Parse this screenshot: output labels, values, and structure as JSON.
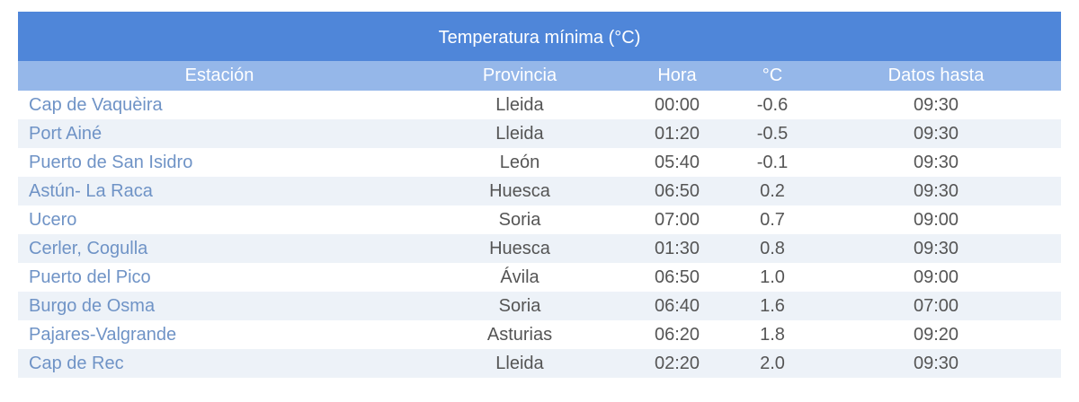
{
  "table": {
    "title": "Temperatura mínima (°C)",
    "columns": [
      "Estación",
      "Provincia",
      "Hora",
      "°C",
      "Datos hasta"
    ],
    "rows": [
      [
        "Cap de Vaquèira",
        "Lleida",
        "00:00",
        "-0.6",
        "09:30"
      ],
      [
        "Port Ainé",
        "Lleida",
        "01:20",
        "-0.5",
        "09:30"
      ],
      [
        "Puerto de San Isidro",
        "León",
        "05:40",
        "-0.1",
        "09:30"
      ],
      [
        "Astún- La Raca",
        "Huesca",
        "06:50",
        "0.2",
        "09:30"
      ],
      [
        "Ucero",
        "Soria",
        "07:00",
        "0.7",
        "09:00"
      ],
      [
        "Cerler, Cogulla",
        "Huesca",
        "01:30",
        "0.8",
        "09:30"
      ],
      [
        "Puerto del Pico",
        "Ávila",
        "06:50",
        "1.0",
        "09:00"
      ],
      [
        "Burgo de Osma",
        "Soria",
        "06:40",
        "1.6",
        "07:00"
      ],
      [
        "Pajares-Valgrande",
        "Asturias",
        "06:20",
        "1.8",
        "09:20"
      ],
      [
        "Cap de Rec",
        "Lleida",
        "02:20",
        "2.0",
        "09:30"
      ]
    ]
  }
}
